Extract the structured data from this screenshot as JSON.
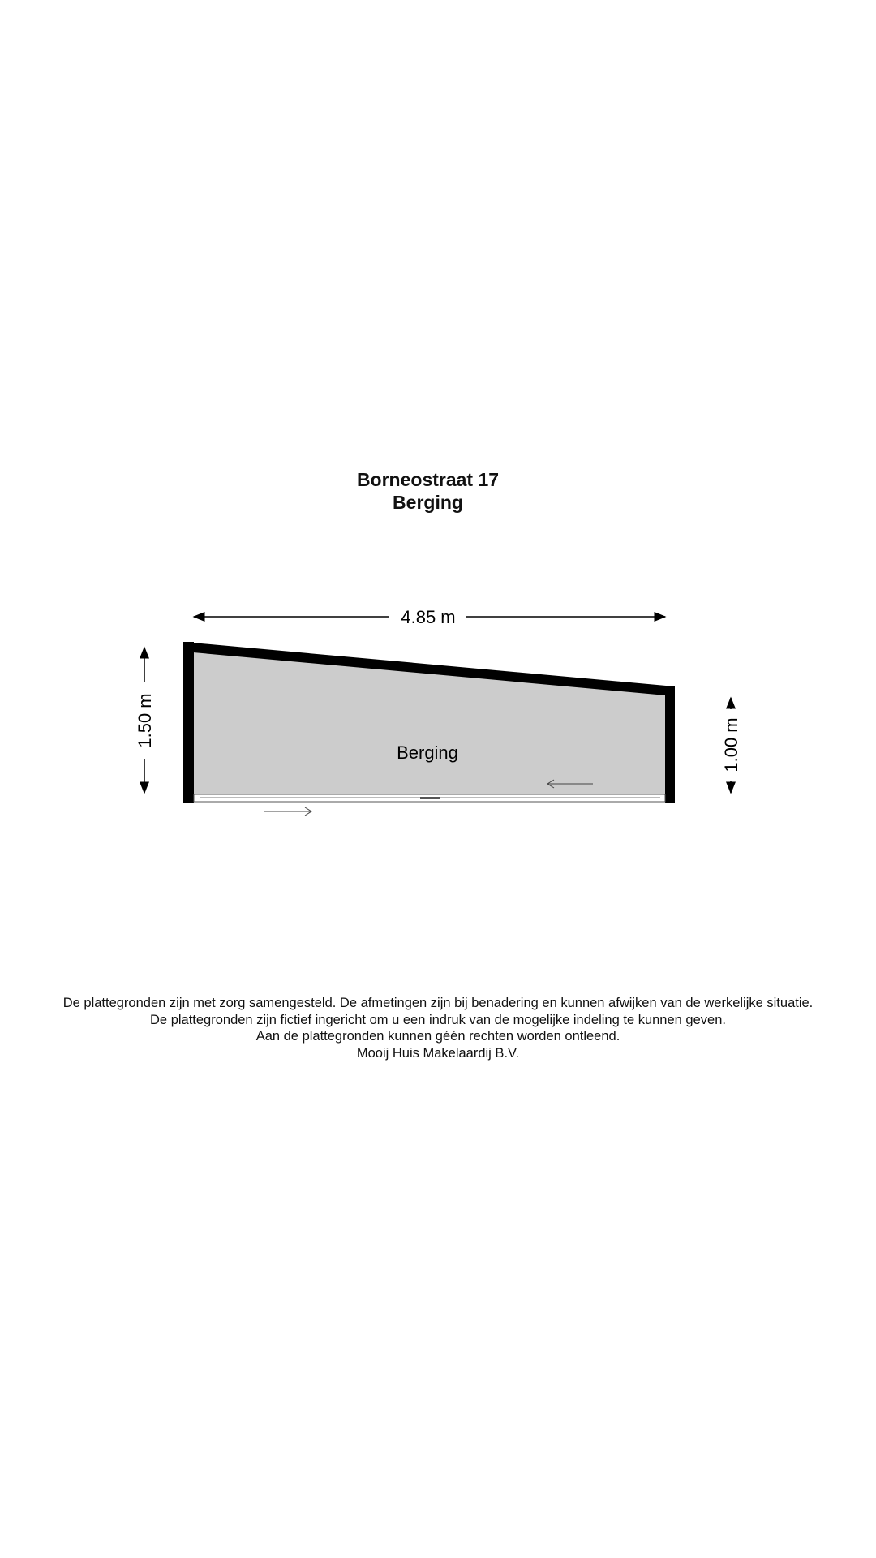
{
  "header": {
    "address": "Borneostraat 17",
    "floor": "Berging"
  },
  "plan": {
    "width_label": "4.85 m",
    "left_height_label": "1.50 m",
    "right_height_label": "1.00 m",
    "room_label": "Berging",
    "colors": {
      "wall": "#000000",
      "floor": "#cccccc"
    }
  },
  "footer": {
    "lines": [
      "De plattegronden zijn met zorg samengesteld. De afmetingen zijn bij benadering en kunnen afwijken van de werkelijke situatie.",
      "De plattegronden zijn fictief ingericht om u een indruk van de mogelijke indeling te kunnen geven.",
      "Aan de plattegronden kunnen géén rechten worden ontleend.",
      "Mooij Huis Makelaardij B.V."
    ]
  }
}
